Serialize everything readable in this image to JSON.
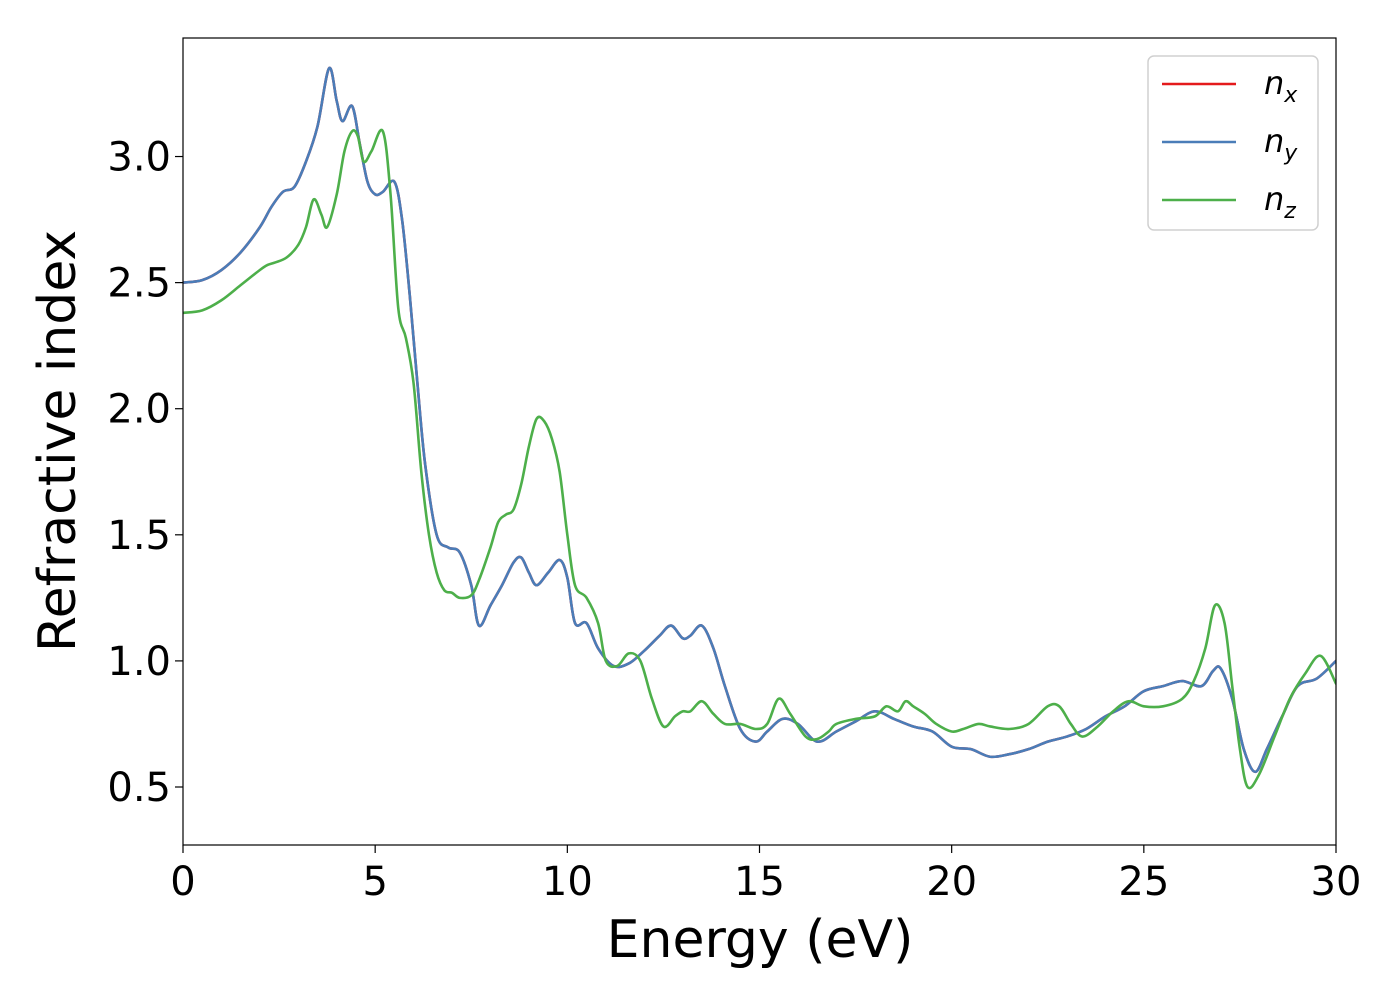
{
  "chart_data": {
    "type": "line",
    "xlabel": "Energy (eV)",
    "ylabel": "Refractive index",
    "xlim": [
      0,
      30
    ],
    "ylim": [
      0.27,
      3.47
    ],
    "xticks": [
      0,
      5,
      10,
      15,
      20,
      25,
      30
    ],
    "yticks": [
      0.5,
      1.0,
      1.5,
      2.0,
      2.5,
      3.0
    ],
    "xtick_labels": [
      "0",
      "5",
      "10",
      "15",
      "20",
      "25",
      "30"
    ],
    "ytick_labels": [
      "0.5",
      "1.0",
      "1.5",
      "2.0",
      "2.5",
      "3.0"
    ],
    "grid": false,
    "legend_position": "top-right",
    "series": [
      {
        "name": "n",
        "sub": "x",
        "color": "#e41a1c",
        "x": [
          0,
          0.5,
          1.0,
          1.5,
          2.0,
          2.3,
          2.6,
          2.9,
          3.2,
          3.5,
          3.8,
          4.0,
          4.15,
          4.4,
          4.6,
          4.8,
          5.0,
          5.2,
          5.5,
          5.7,
          5.9,
          6.1,
          6.3,
          6.6,
          6.9,
          7.2,
          7.5,
          7.7,
          8.0,
          8.3,
          8.6,
          8.8,
          9.0,
          9.2,
          9.5,
          9.8,
          10.0,
          10.2,
          10.5,
          10.8,
          11.2,
          11.6,
          12.0,
          12.4,
          12.7,
          13.0,
          13.2,
          13.5,
          13.8,
          14.1,
          14.5,
          14.9,
          15.2,
          15.6,
          16.0,
          16.5,
          17.0,
          17.5,
          18.0,
          18.5,
          19.0,
          19.5,
          20.0,
          20.5,
          21.0,
          21.5,
          22.0,
          22.5,
          23.0,
          23.5,
          24.0,
          24.5,
          25.0,
          25.5,
          26.0,
          26.5,
          26.8,
          27.0,
          27.3,
          27.6,
          27.9,
          28.2,
          28.6,
          29.0,
          29.5,
          30.0
        ],
        "y": [
          2.5,
          2.51,
          2.55,
          2.62,
          2.72,
          2.8,
          2.86,
          2.88,
          2.98,
          3.12,
          3.35,
          3.22,
          3.14,
          3.2,
          3.05,
          2.9,
          2.85,
          2.86,
          2.9,
          2.75,
          2.45,
          2.1,
          1.78,
          1.5,
          1.45,
          1.43,
          1.3,
          1.14,
          1.22,
          1.3,
          1.39,
          1.41,
          1.35,
          1.3,
          1.35,
          1.4,
          1.33,
          1.15,
          1.15,
          1.05,
          0.98,
          0.99,
          1.04,
          1.1,
          1.14,
          1.09,
          1.1,
          1.14,
          1.05,
          0.9,
          0.73,
          0.68,
          0.72,
          0.77,
          0.75,
          0.68,
          0.72,
          0.76,
          0.8,
          0.77,
          0.74,
          0.72,
          0.66,
          0.65,
          0.62,
          0.63,
          0.65,
          0.68,
          0.7,
          0.73,
          0.78,
          0.82,
          0.88,
          0.9,
          0.92,
          0.9,
          0.96,
          0.97,
          0.85,
          0.65,
          0.56,
          0.65,
          0.78,
          0.9,
          0.93,
          1.0
        ]
      },
      {
        "name": "n",
        "sub": "y",
        "color": "#4a7db8",
        "x": [
          0,
          0.5,
          1.0,
          1.5,
          2.0,
          2.3,
          2.6,
          2.9,
          3.2,
          3.5,
          3.8,
          4.0,
          4.15,
          4.4,
          4.6,
          4.8,
          5.0,
          5.2,
          5.5,
          5.7,
          5.9,
          6.1,
          6.3,
          6.6,
          6.9,
          7.2,
          7.5,
          7.7,
          8.0,
          8.3,
          8.6,
          8.8,
          9.0,
          9.2,
          9.5,
          9.8,
          10.0,
          10.2,
          10.5,
          10.8,
          11.2,
          11.6,
          12.0,
          12.4,
          12.7,
          13.0,
          13.2,
          13.5,
          13.8,
          14.1,
          14.5,
          14.9,
          15.2,
          15.6,
          16.0,
          16.5,
          17.0,
          17.5,
          18.0,
          18.5,
          19.0,
          19.5,
          20.0,
          20.5,
          21.0,
          21.5,
          22.0,
          22.5,
          23.0,
          23.5,
          24.0,
          24.5,
          25.0,
          25.5,
          26.0,
          26.5,
          26.8,
          27.0,
          27.3,
          27.6,
          27.9,
          28.2,
          28.6,
          29.0,
          29.5,
          30.0
        ],
        "y": [
          2.5,
          2.51,
          2.55,
          2.62,
          2.72,
          2.8,
          2.86,
          2.88,
          2.98,
          3.12,
          3.35,
          3.22,
          3.14,
          3.2,
          3.05,
          2.9,
          2.85,
          2.86,
          2.9,
          2.75,
          2.45,
          2.1,
          1.78,
          1.5,
          1.45,
          1.43,
          1.3,
          1.14,
          1.22,
          1.3,
          1.39,
          1.41,
          1.35,
          1.3,
          1.35,
          1.4,
          1.33,
          1.15,
          1.15,
          1.05,
          0.98,
          0.99,
          1.04,
          1.1,
          1.14,
          1.09,
          1.1,
          1.14,
          1.05,
          0.9,
          0.73,
          0.68,
          0.72,
          0.77,
          0.75,
          0.68,
          0.72,
          0.76,
          0.8,
          0.77,
          0.74,
          0.72,
          0.66,
          0.65,
          0.62,
          0.63,
          0.65,
          0.68,
          0.7,
          0.73,
          0.78,
          0.82,
          0.88,
          0.9,
          0.92,
          0.9,
          0.96,
          0.97,
          0.85,
          0.65,
          0.56,
          0.65,
          0.78,
          0.9,
          0.93,
          1.0
        ]
      },
      {
        "name": "n",
        "sub": "z",
        "color": "#4daf4a",
        "x": [
          0,
          0.5,
          1.0,
          1.5,
          2.0,
          2.2,
          2.4,
          2.7,
          3.0,
          3.2,
          3.4,
          3.6,
          3.75,
          4.0,
          4.2,
          4.4,
          4.55,
          4.7,
          4.9,
          5.2,
          5.4,
          5.6,
          5.8,
          6.0,
          6.2,
          6.4,
          6.6,
          6.8,
          7.0,
          7.2,
          7.5,
          7.7,
          8.0,
          8.2,
          8.4,
          8.6,
          8.8,
          9.0,
          9.2,
          9.4,
          9.6,
          9.8,
          10.0,
          10.2,
          10.5,
          10.8,
          11.0,
          11.3,
          11.6,
          11.9,
          12.2,
          12.5,
          12.8,
          13.0,
          13.2,
          13.5,
          13.8,
          14.1,
          14.5,
          14.9,
          15.2,
          15.5,
          15.8,
          16.2,
          16.5,
          16.8,
          17.0,
          17.5,
          18.0,
          18.3,
          18.6,
          18.8,
          19.0,
          19.3,
          19.6,
          20.0,
          20.3,
          20.7,
          21.0,
          21.5,
          22.0,
          22.5,
          22.8,
          23.1,
          23.4,
          23.8,
          24.2,
          24.6,
          25.0,
          25.5,
          26.0,
          26.3,
          26.6,
          26.85,
          27.1,
          27.3,
          27.5,
          27.7,
          28.0,
          28.4,
          28.8,
          29.2,
          29.6,
          30.0
        ],
        "y": [
          2.38,
          2.39,
          2.43,
          2.49,
          2.55,
          2.57,
          2.58,
          2.6,
          2.65,
          2.72,
          2.83,
          2.77,
          2.72,
          2.85,
          3.02,
          3.1,
          3.08,
          2.98,
          3.02,
          3.1,
          2.85,
          2.4,
          2.28,
          2.1,
          1.75,
          1.5,
          1.35,
          1.28,
          1.27,
          1.25,
          1.26,
          1.32,
          1.45,
          1.55,
          1.58,
          1.6,
          1.7,
          1.85,
          1.96,
          1.95,
          1.88,
          1.75,
          1.5,
          1.3,
          1.25,
          1.15,
          1.0,
          0.98,
          1.03,
          1.0,
          0.85,
          0.74,
          0.78,
          0.8,
          0.8,
          0.84,
          0.79,
          0.75,
          0.75,
          0.73,
          0.75,
          0.85,
          0.79,
          0.7,
          0.69,
          0.72,
          0.75,
          0.77,
          0.78,
          0.82,
          0.8,
          0.84,
          0.82,
          0.79,
          0.75,
          0.72,
          0.73,
          0.75,
          0.74,
          0.73,
          0.75,
          0.82,
          0.82,
          0.75,
          0.7,
          0.74,
          0.8,
          0.84,
          0.82,
          0.82,
          0.85,
          0.92,
          1.05,
          1.22,
          1.15,
          0.9,
          0.65,
          0.5,
          0.55,
          0.7,
          0.85,
          0.95,
          1.02,
          0.91
        ]
      }
    ]
  }
}
